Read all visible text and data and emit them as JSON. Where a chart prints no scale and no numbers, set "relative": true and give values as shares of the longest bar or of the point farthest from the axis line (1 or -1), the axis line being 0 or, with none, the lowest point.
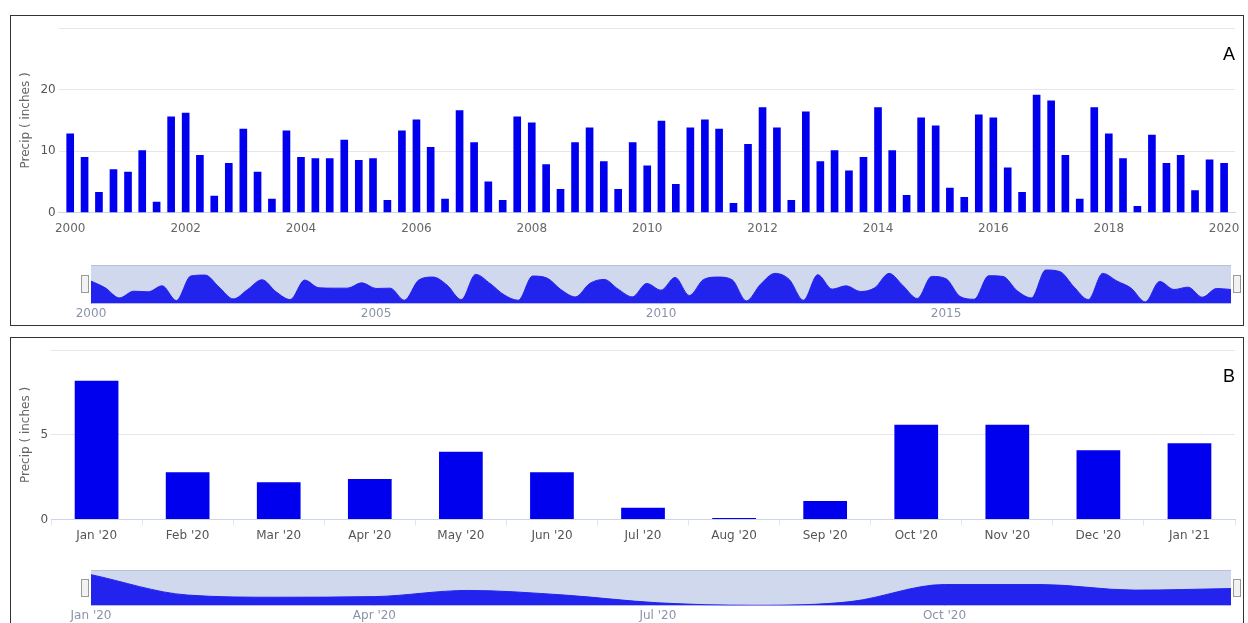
{
  "chart_data": [
    {
      "type": "bar",
      "ylabel": "Precip ( inches )",
      "annotations": [
        "A"
      ],
      "grid": "y",
      "legend": false,
      "color": "#0000ee",
      "x": [
        "2000-01",
        "2000-04",
        "2000-07",
        "2000-10",
        "2001-01",
        "2001-04",
        "2001-07",
        "2001-10",
        "2002-01",
        "2002-04",
        "2002-07",
        "2002-10",
        "2003-01",
        "2003-04",
        "2003-07",
        "2003-10",
        "2004-01",
        "2004-04",
        "2004-07",
        "2004-10",
        "2005-01",
        "2005-04",
        "2005-07",
        "2005-10",
        "2006-01",
        "2006-04",
        "2006-07",
        "2006-10",
        "2007-01",
        "2007-04",
        "2007-07",
        "2007-10",
        "2008-01",
        "2008-04",
        "2008-07",
        "2008-10",
        "2009-01",
        "2009-04",
        "2009-07",
        "2009-10",
        "2010-01",
        "2010-04",
        "2010-07",
        "2010-10",
        "2011-01",
        "2011-04",
        "2011-07",
        "2011-10",
        "2012-01",
        "2012-04",
        "2012-07",
        "2012-10",
        "2013-01",
        "2013-04",
        "2013-07",
        "2013-10",
        "2014-01",
        "2014-04",
        "2014-07",
        "2014-10",
        "2015-01",
        "2015-04",
        "2015-07",
        "2015-10",
        "2016-01",
        "2016-04",
        "2016-07",
        "2016-10",
        "2017-01",
        "2017-04",
        "2017-07",
        "2017-10",
        "2018-01",
        "2018-04",
        "2018-07",
        "2018-10",
        "2019-01",
        "2019-04",
        "2019-07",
        "2019-10",
        "2020-01"
      ],
      "values": [
        12.8,
        9.0,
        3.3,
        7.0,
        6.6,
        10.1,
        1.7,
        15.6,
        16.2,
        9.3,
        2.7,
        8.0,
        13.6,
        6.6,
        2.2,
        13.3,
        9.0,
        8.8,
        8.8,
        11.8,
        8.5,
        8.8,
        2.0,
        13.3,
        15.1,
        10.6,
        2.2,
        16.6,
        11.4,
        5.0,
        2.0,
        15.6,
        14.6,
        7.8,
        3.8,
        11.4,
        13.8,
        8.3,
        3.8,
        11.4,
        7.6,
        14.9,
        4.6,
        13.8,
        15.1,
        13.6,
        1.5,
        11.1,
        17.1,
        13.8,
        2.0,
        16.4,
        8.3,
        10.1,
        6.8,
        9.0,
        17.1,
        10.1,
        2.8,
        15.4,
        14.1,
        4.0,
        2.5,
        15.9,
        15.4,
        7.3,
        3.3,
        19.1,
        18.2,
        9.3,
        2.2,
        17.1,
        12.8,
        8.8,
        1.0,
        12.6,
        8.0,
        9.3,
        3.6,
        8.6,
        8.0
      ],
      "xlim": [
        "1999-10-20",
        "2020-03-10"
      ],
      "xticks": [
        {
          "value": "2000",
          "label": "2000"
        },
        {
          "value": "2002",
          "label": "2002"
        },
        {
          "value": "2004",
          "label": "2004"
        },
        {
          "value": "2006",
          "label": "2006"
        },
        {
          "value": "2008",
          "label": "2008"
        },
        {
          "value": "2010",
          "label": "2010"
        },
        {
          "value": "2012",
          "label": "2012"
        },
        {
          "value": "2014",
          "label": "2014"
        },
        {
          "value": "2016",
          "label": "2016"
        },
        {
          "value": "2018",
          "label": "2018"
        },
        {
          "value": "2020",
          "label": "2020"
        }
      ],
      "ylim": [
        0,
        30
      ],
      "yticks": [
        0,
        10,
        20,
        {
          "value": 30,
          "label": null
        }
      ]
    },
    {
      "type": "area",
      "relative": true,
      "grid": "x",
      "legend": false,
      "color": "#2323ee",
      "x": [
        "2000-01",
        "2000-04",
        "2000-07",
        "2000-10",
        "2001-01",
        "2001-04",
        "2001-07",
        "2001-10",
        "2002-01",
        "2002-04",
        "2002-07",
        "2002-10",
        "2003-01",
        "2003-04",
        "2003-07",
        "2003-10",
        "2004-01",
        "2004-04",
        "2004-07",
        "2004-10",
        "2005-01",
        "2005-04",
        "2005-07",
        "2005-10",
        "2006-01",
        "2006-04",
        "2006-07",
        "2006-10",
        "2007-01",
        "2007-04",
        "2007-07",
        "2007-10",
        "2008-01",
        "2008-04",
        "2008-07",
        "2008-10",
        "2009-01",
        "2009-04",
        "2009-07",
        "2009-10",
        "2010-01",
        "2010-04",
        "2010-07",
        "2010-10",
        "2011-01",
        "2011-04",
        "2011-07",
        "2011-10",
        "2012-01",
        "2012-04",
        "2012-07",
        "2012-10",
        "2013-01",
        "2013-04",
        "2013-07",
        "2013-10",
        "2014-01",
        "2014-04",
        "2014-07",
        "2014-10",
        "2015-01",
        "2015-04",
        "2015-07",
        "2015-10",
        "2016-01",
        "2016-04",
        "2016-07",
        "2016-10",
        "2017-01",
        "2017-04",
        "2017-07",
        "2017-10",
        "2018-01",
        "2018-04",
        "2018-07",
        "2018-10",
        "2019-01",
        "2019-04",
        "2019-07",
        "2019-10",
        "2020-01"
      ],
      "values": [
        0.67,
        0.47,
        0.17,
        0.37,
        0.35,
        0.53,
        0.09,
        0.82,
        0.85,
        0.49,
        0.14,
        0.42,
        0.71,
        0.35,
        0.12,
        0.7,
        0.47,
        0.46,
        0.46,
        0.62,
        0.45,
        0.46,
        0.1,
        0.7,
        0.79,
        0.55,
        0.12,
        0.87,
        0.6,
        0.26,
        0.1,
        0.82,
        0.76,
        0.41,
        0.2,
        0.6,
        0.72,
        0.43,
        0.2,
        0.6,
        0.4,
        0.78,
        0.24,
        0.72,
        0.79,
        0.71,
        0.08,
        0.58,
        0.9,
        0.72,
        0.1,
        0.86,
        0.43,
        0.53,
        0.36,
        0.47,
        0.9,
        0.53,
        0.15,
        0.81,
        0.74,
        0.21,
        0.13,
        0.83,
        0.81,
        0.38,
        0.17,
        1,
        0.95,
        0.49,
        0.12,
        0.9,
        0.67,
        0.46,
        0.05,
        0.66,
        0.42,
        0.49,
        0.19,
        0.45,
        0.42
      ],
      "xlim": [
        "2000-01",
        "2020-01"
      ],
      "xticks": [
        {
          "value": "2000",
          "label": "2000"
        },
        {
          "value": "2005",
          "label": "2005"
        },
        {
          "value": "2010",
          "label": "2010"
        },
        {
          "value": "2015",
          "label": "2015"
        }
      ]
    },
    {
      "type": "bar",
      "ylabel": "Precip ( inches )",
      "annotations": [
        "B"
      ],
      "grid": "y",
      "legend": false,
      "color": "#0000ee",
      "categories": [
        "Jan '20",
        "Feb '20",
        "Mar '20",
        "Apr '20",
        "May '20",
        "Jun '20",
        "Jul '20",
        "Aug '20",
        "Sep '20",
        "Oct '20",
        "Nov '20",
        "Dec '20",
        "Jan '21"
      ],
      "values": [
        8.2,
        2.8,
        2.2,
        2.4,
        4.0,
        2.8,
        0.7,
        0.1,
        1.1,
        5.6,
        5.6,
        4.1,
        4.5
      ],
      "ylim": [
        0,
        10
      ],
      "yticks": [
        0,
        5,
        {
          "value": 10,
          "label": null
        }
      ]
    },
    {
      "type": "area",
      "relative": true,
      "grid": "x",
      "legend": false,
      "color": "#2323ee",
      "x": [
        "2020-01",
        "2020-02",
        "2020-03",
        "2020-04",
        "2020-05",
        "2020-06",
        "2020-07",
        "2020-08",
        "2020-09",
        "2020-10",
        "2020-11",
        "2020-12",
        "2021-01"
      ],
      "values": [
        1,
        0.34,
        0.27,
        0.29,
        0.49,
        0.34,
        0.09,
        0.01,
        0.13,
        0.68,
        0.68,
        0.5,
        0.55
      ],
      "xlim": [
        "2020-01",
        "2021-01"
      ],
      "xticks": [
        {
          "value": "2020-01",
          "label": "Jan '20"
        },
        {
          "value": "2020-04",
          "label": "Apr '20"
        },
        {
          "value": "2020-07",
          "label": "Jul '20"
        },
        {
          "value": "2020-10",
          "label": "Oct '20"
        }
      ]
    }
  ]
}
